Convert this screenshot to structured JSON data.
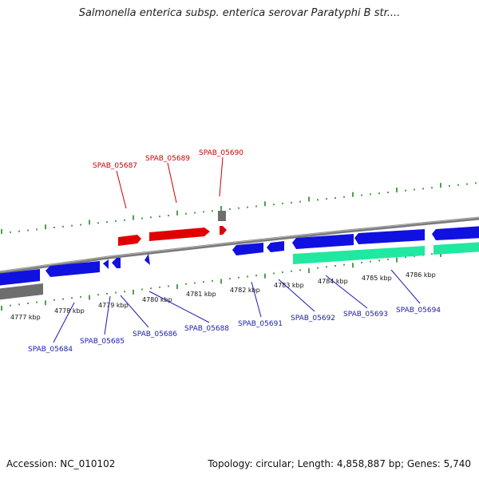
{
  "title": "Salmonella enterica subsp. enterica serovar Paratyphi B str....",
  "footer": {
    "accession": "Accession: NC_010102",
    "topology": "Topology: circular; Length: 4,858,887 bp; Genes: 5,740"
  },
  "colors": {
    "forward_gene": "#e00000",
    "reverse_gene": "#1010e0",
    "gene_feature": "#20e8a0",
    "rna_feature": "#707070",
    "backbone": "#808080",
    "ticks": "#228822",
    "top_label": "#cc0000",
    "bottom_label": "#1a1ab0"
  },
  "axis_labels": [
    "4777 kbp",
    "4778 kbp",
    "4779 kbp",
    "4780 kbp",
    "4781 kbp",
    "4782 kbp",
    "4783 kbp",
    "4784 kbp",
    "4785 kbp",
    "4786 kbp"
  ],
  "top_gene_labels": [
    "SPAB_05687",
    "SPAB_05689",
    "SPAB_05690"
  ],
  "bottom_gene_labels": [
    "SPAB_05684",
    "SPAB_05685",
    "SPAB_05686",
    "SPAB_05688",
    "SPAB_05691",
    "SPAB_05692",
    "SPAB_05693",
    "SPAB_05694"
  ]
}
